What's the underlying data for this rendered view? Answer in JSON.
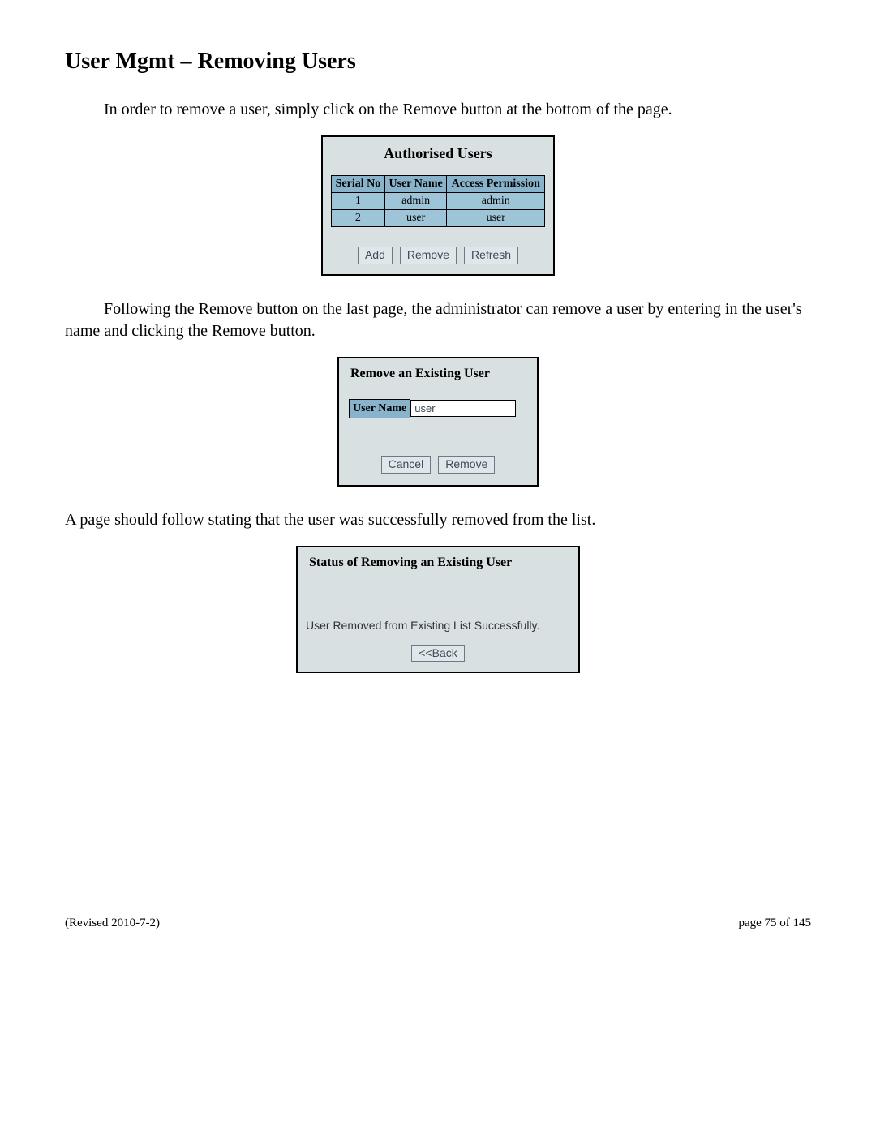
{
  "page": {
    "title": "User Mgmt – Removing Users",
    "p1": "In order to remove a user, simply click on the Remove button at the bottom of the page.",
    "p2": "Following the Remove button on the last page, the administrator can remove a user by entering in the user's name and clicking the Remove button.",
    "p3": "A page should follow stating that the user was successfully removed from the list."
  },
  "auth_panel": {
    "title": "Authorised Users",
    "columns": [
      "Serial No",
      "User Name",
      "Access Permission"
    ],
    "rows": [
      [
        "1",
        "admin",
        "admin"
      ],
      [
        "2",
        "user",
        "user"
      ]
    ],
    "buttons": {
      "add": "Add",
      "remove": "Remove",
      "refresh": "Refresh"
    }
  },
  "remove_panel": {
    "title": "Remove an Existing User",
    "label": "User Name",
    "value": "user",
    "buttons": {
      "cancel": "Cancel",
      "remove": "Remove"
    }
  },
  "status_panel": {
    "title": "Status of Removing an Existing User",
    "message": "User Removed from Existing List Successfully.",
    "buttons": {
      "back": "<<Back"
    }
  },
  "footer": {
    "revised": "(Revised 2010-7-2)",
    "page": "page 75 of 145"
  },
  "colors": {
    "panel_bg": "#d8e0e2",
    "header_cell": "#88b3cb",
    "data_cell": "#9ec4d8",
    "btn_bg": "#dfe7eb",
    "btn_border": "#6a7a86",
    "btn_text": "#404a52"
  }
}
